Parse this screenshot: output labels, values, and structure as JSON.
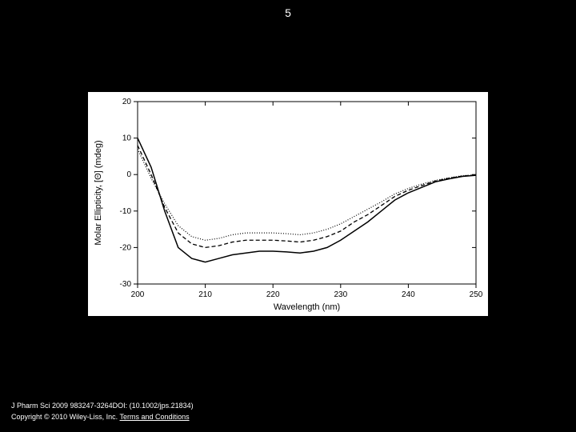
{
  "slide_number": "5",
  "chart": {
    "type": "line",
    "xlabel": "Wavelength (nm)",
    "ylabel": "Molar Ellipticity, [Θ]  (mdeg)",
    "xlim": [
      200,
      250
    ],
    "ylim": [
      -30,
      20
    ],
    "xticks": [
      200,
      210,
      220,
      230,
      240,
      250
    ],
    "yticks": [
      -30,
      -20,
      -10,
      0,
      10,
      20
    ],
    "background_color": "#ffffff",
    "axis_color": "#000000",
    "tick_fontsize": 10,
    "label_fontsize": 11,
    "series": [
      {
        "name": "solid",
        "stroke": "#000000",
        "stroke_width": 1.5,
        "dash": "none",
        "x": [
          200,
          202,
          204,
          206,
          208,
          210,
          212,
          214,
          216,
          218,
          220,
          222,
          224,
          226,
          228,
          230,
          232,
          234,
          236,
          238,
          240,
          242,
          244,
          246,
          248,
          250
        ],
        "y": [
          10,
          2,
          -10,
          -20,
          -23,
          -24,
          -23,
          -22,
          -21.5,
          -21,
          -21,
          -21.2,
          -21.5,
          -21,
          -20,
          -18,
          -15.5,
          -13,
          -10,
          -7,
          -5,
          -3.5,
          -2,
          -1.2,
          -0.5,
          -0.2
        ]
      },
      {
        "name": "dashed",
        "stroke": "#000000",
        "stroke_width": 1.3,
        "dash": "5,3",
        "x": [
          200,
          202,
          204,
          206,
          208,
          210,
          212,
          214,
          216,
          218,
          220,
          222,
          224,
          226,
          228,
          230,
          232,
          234,
          236,
          238,
          240,
          242,
          244,
          246,
          248,
          250
        ],
        "y": [
          8,
          0,
          -9,
          -16,
          -19,
          -20,
          -19.5,
          -18.5,
          -18,
          -18,
          -18,
          -18.2,
          -18.5,
          -18,
          -17,
          -15.5,
          -13,
          -11,
          -8.5,
          -6,
          -4.3,
          -3,
          -1.8,
          -1,
          -0.4,
          -0.1
        ]
      },
      {
        "name": "dotted",
        "stroke": "#000000",
        "stroke_width": 1.2,
        "dash": "1,2",
        "x": [
          200,
          202,
          204,
          206,
          208,
          210,
          212,
          214,
          216,
          218,
          220,
          222,
          224,
          226,
          228,
          230,
          232,
          234,
          236,
          238,
          240,
          242,
          244,
          246,
          248,
          250
        ],
        "y": [
          7,
          -1,
          -8,
          -14,
          -17,
          -18,
          -17.5,
          -16.5,
          -16,
          -16,
          -16,
          -16.2,
          -16.5,
          -16,
          -15,
          -13.5,
          -11.5,
          -9.5,
          -7.5,
          -5.3,
          -3.8,
          -2.6,
          -1.6,
          -0.9,
          -0.3,
          -0.1
        ]
      }
    ]
  },
  "citation": "J Pharm Sci 2009 983247-3264DOI: (10.1002/jps.21834)",
  "copyright_prefix": "Copyright © 2010 Wiley-Liss, Inc. ",
  "copyright_link": "Terms and Conditions"
}
